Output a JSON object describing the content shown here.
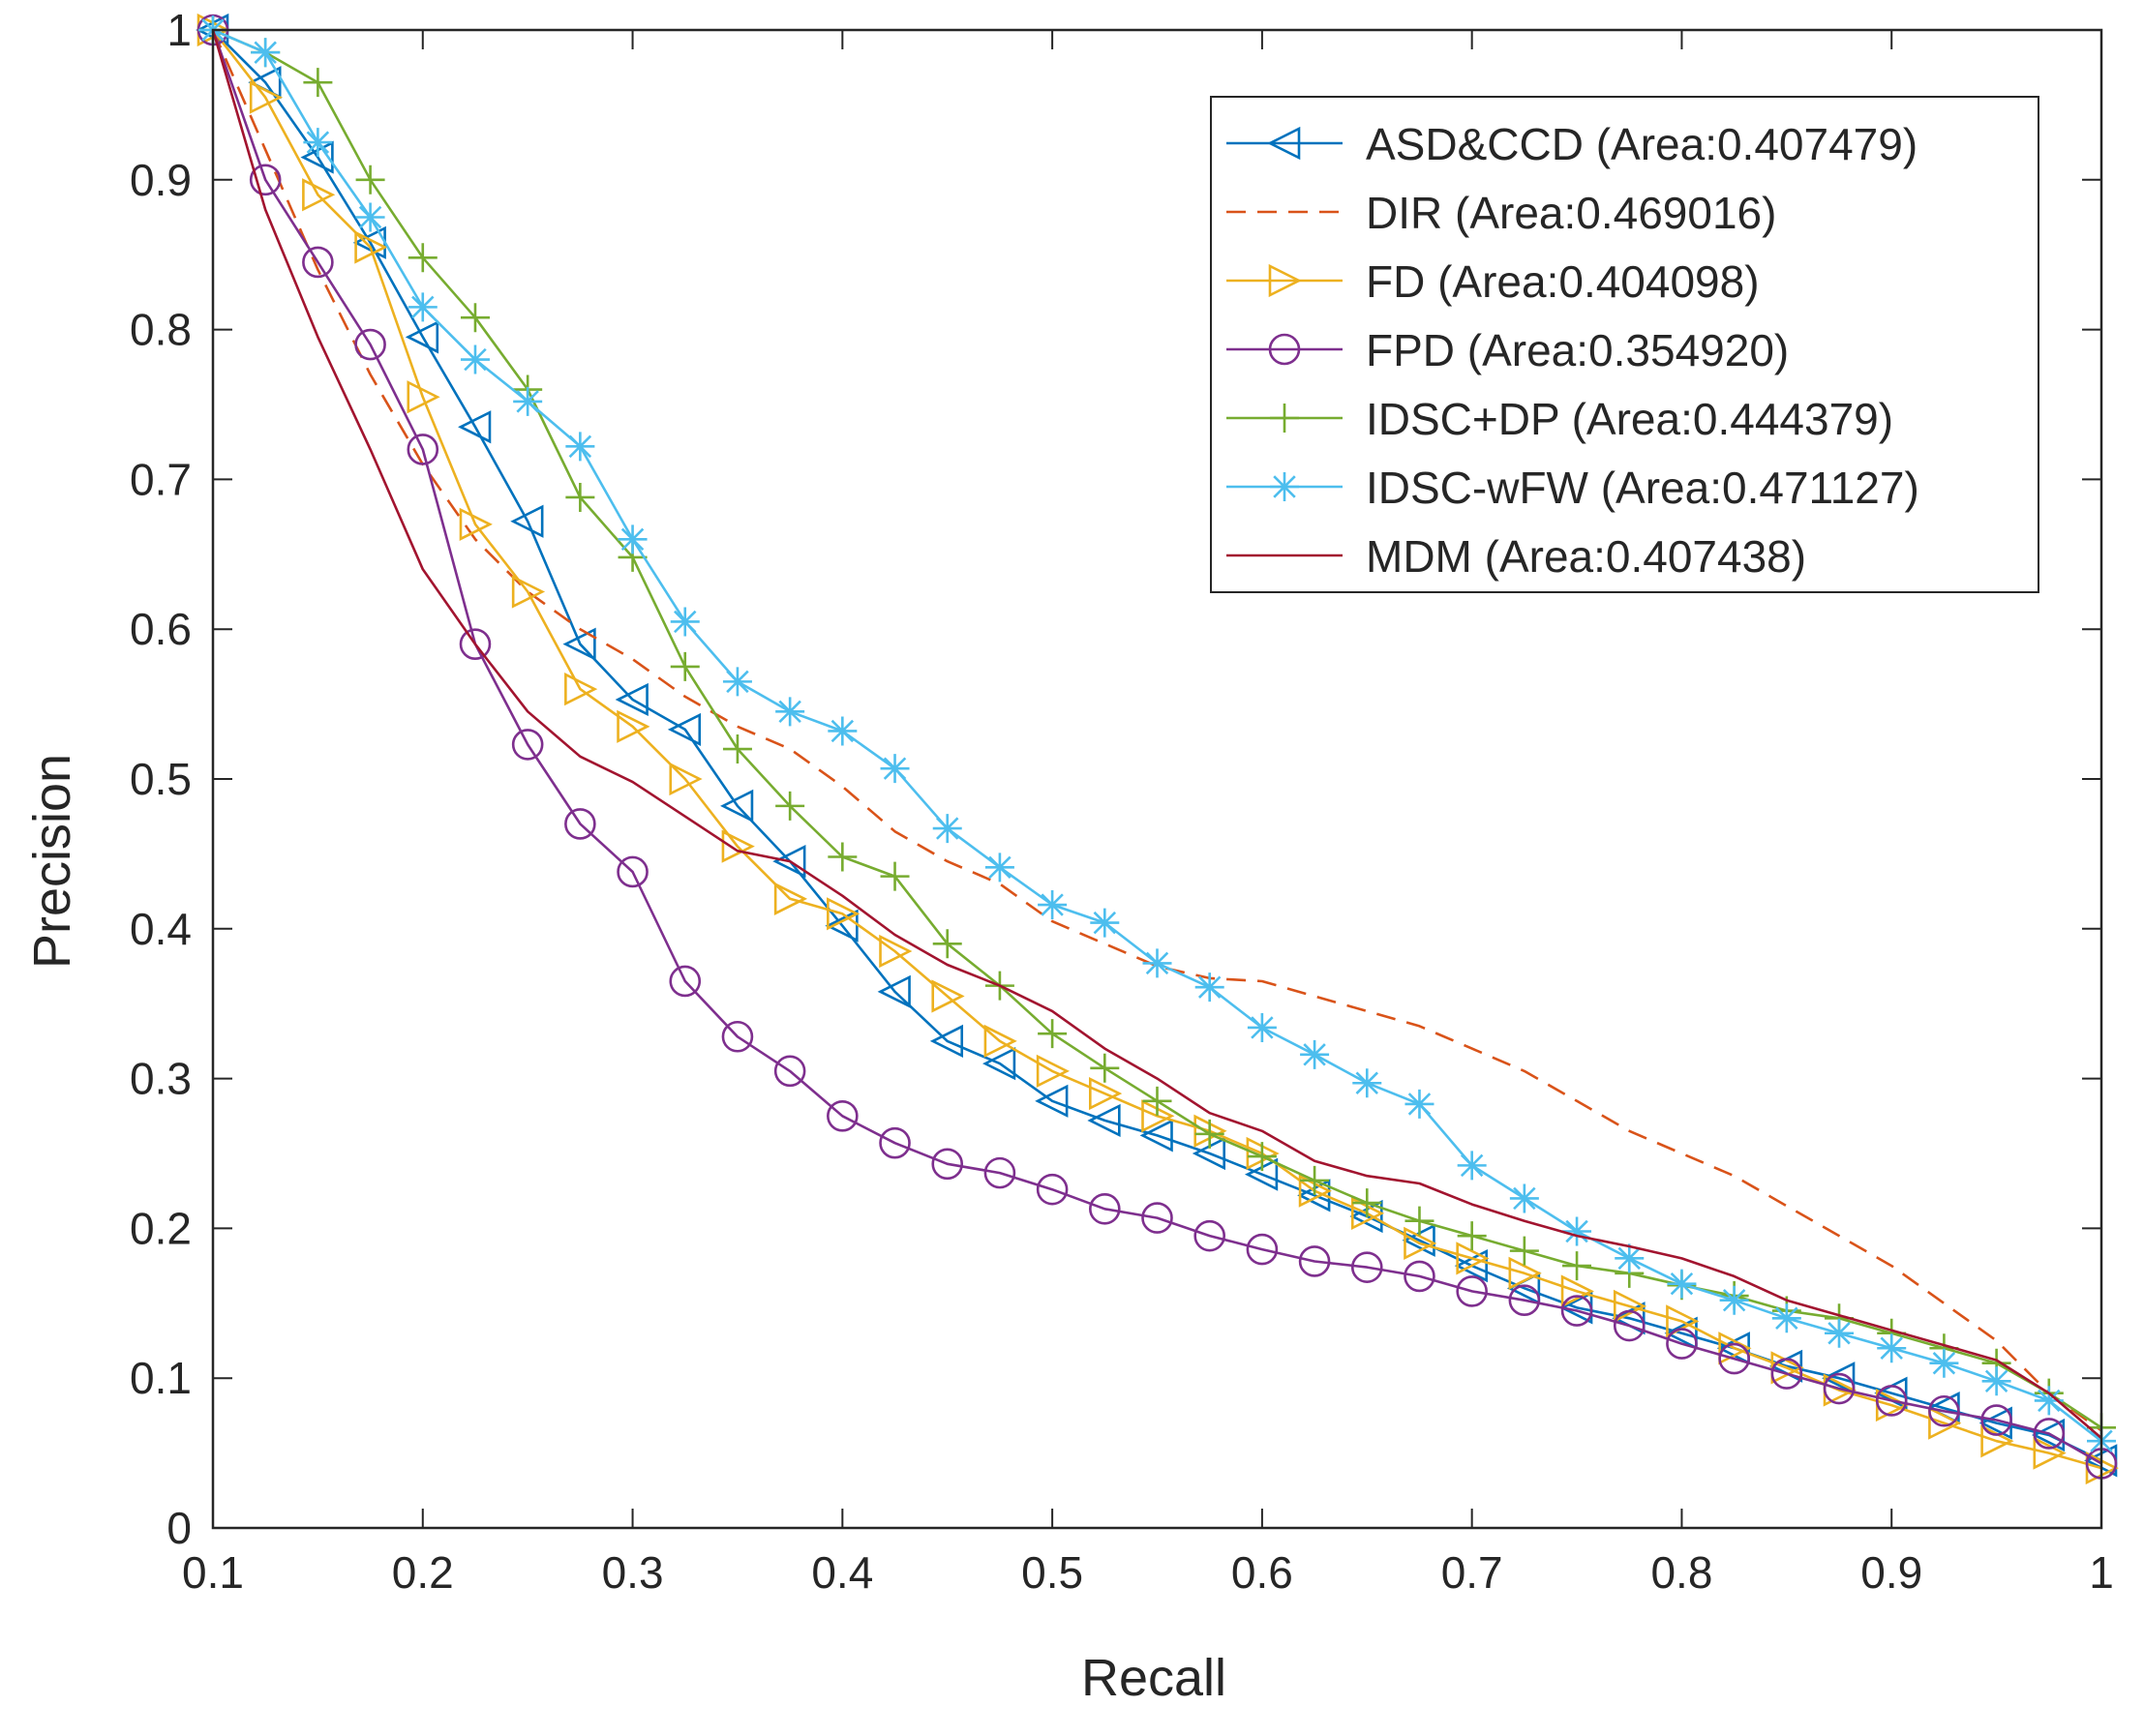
{
  "chart_data": {
    "type": "line",
    "title": "",
    "xlabel": "Recall",
    "ylabel": "Precision",
    "xlim": [
      0.1,
      1
    ],
    "ylim": [
      0,
      1
    ],
    "xticks": [
      0.1,
      0.2,
      0.3,
      0.4,
      0.5,
      0.6,
      0.7,
      0.8,
      0.9,
      1
    ],
    "xtick_labels": [
      "0.1",
      "0.2",
      "0.3",
      "0.4",
      "0.5",
      "0.6",
      "0.7",
      "0.8",
      "0.9",
      "1"
    ],
    "yticks": [
      0,
      0.1,
      0.2,
      0.3,
      0.4,
      0.5,
      0.6,
      0.7,
      0.8,
      0.9,
      1
    ],
    "ytick_labels": [
      "0",
      "0.1",
      "0.2",
      "0.3",
      "0.4",
      "0.5",
      "0.6",
      "0.7",
      "0.8",
      "0.9",
      "1"
    ],
    "grid": false,
    "legend_position": "top-right",
    "x": [
      0.1,
      0.125,
      0.15,
      0.175,
      0.2,
      0.225,
      0.25,
      0.275,
      0.3,
      0.325,
      0.35,
      0.375,
      0.4,
      0.425,
      0.45,
      0.475,
      0.5,
      0.525,
      0.55,
      0.575,
      0.6,
      0.625,
      0.65,
      0.675,
      0.7,
      0.725,
      0.75,
      0.775,
      0.8,
      0.825,
      0.85,
      0.875,
      0.9,
      0.925,
      0.95,
      0.975,
      1.0
    ],
    "series": [
      {
        "name": "ASD&CCD (Area:0.407479)",
        "color": "#0072BD",
        "dash": "solid",
        "marker": "triangle-left",
        "values": [
          1.0,
          0.965,
          0.915,
          0.858,
          0.795,
          0.735,
          0.672,
          0.59,
          0.553,
          0.533,
          0.482,
          0.445,
          0.402,
          0.358,
          0.325,
          0.31,
          0.285,
          0.272,
          0.262,
          0.25,
          0.236,
          0.222,
          0.208,
          0.192,
          0.175,
          0.16,
          0.147,
          0.14,
          0.13,
          0.12,
          0.108,
          0.1,
          0.09,
          0.08,
          0.07,
          0.062,
          0.045
        ]
      },
      {
        "name": "DIR (Area:0.469016)",
        "color": "#D95319",
        "dash": "dashed",
        "marker": "none",
        "values": [
          1.0,
          0.92,
          0.84,
          0.77,
          0.71,
          0.66,
          0.625,
          0.6,
          0.58,
          0.555,
          0.535,
          0.52,
          0.495,
          0.465,
          0.445,
          0.43,
          0.405,
          0.39,
          0.375,
          0.367,
          0.365,
          0.355,
          0.345,
          0.335,
          0.32,
          0.305,
          0.285,
          0.265,
          0.25,
          0.235,
          0.215,
          0.195,
          0.175,
          0.15,
          0.125,
          0.09,
          0.065
        ]
      },
      {
        "name": "FD (Area:0.404098)",
        "color": "#EDB120",
        "dash": "solid",
        "marker": "triangle-right",
        "values": [
          1.0,
          0.955,
          0.89,
          0.855,
          0.755,
          0.67,
          0.625,
          0.56,
          0.535,
          0.5,
          0.455,
          0.42,
          0.41,
          0.385,
          0.355,
          0.325,
          0.305,
          0.29,
          0.275,
          0.265,
          0.25,
          0.225,
          0.21,
          0.19,
          0.18,
          0.17,
          0.158,
          0.148,
          0.138,
          0.12,
          0.107,
          0.092,
          0.082,
          0.07,
          0.058,
          0.05,
          0.04
        ]
      },
      {
        "name": "FPD (Area:0.354920)",
        "color": "#7E2F8E",
        "dash": "solid",
        "marker": "circle",
        "values": [
          1.0,
          0.9,
          0.845,
          0.79,
          0.72,
          0.59,
          0.523,
          0.47,
          0.438,
          0.365,
          0.328,
          0.305,
          0.275,
          0.257,
          0.243,
          0.237,
          0.226,
          0.213,
          0.207,
          0.195,
          0.186,
          0.178,
          0.174,
          0.168,
          0.158,
          0.152,
          0.145,
          0.135,
          0.123,
          0.113,
          0.103,
          0.093,
          0.085,
          0.078,
          0.072,
          0.063,
          0.043
        ]
      },
      {
        "name": "IDSC+DP (Area:0.444379)",
        "color": "#77AC30",
        "dash": "solid",
        "marker": "plus",
        "values": [
          1.0,
          0.985,
          0.965,
          0.9,
          0.848,
          0.808,
          0.76,
          0.688,
          0.648,
          0.575,
          0.52,
          0.482,
          0.448,
          0.435,
          0.39,
          0.362,
          0.33,
          0.307,
          0.285,
          0.263,
          0.248,
          0.232,
          0.217,
          0.205,
          0.195,
          0.185,
          0.175,
          0.17,
          0.162,
          0.155,
          0.145,
          0.14,
          0.13,
          0.12,
          0.11,
          0.09,
          0.067
        ]
      },
      {
        "name": "IDSC-wFW (Area:0.471127)",
        "color": "#4DBEEE",
        "dash": "solid",
        "marker": "asterisk",
        "values": [
          1.0,
          0.985,
          0.925,
          0.875,
          0.815,
          0.78,
          0.752,
          0.722,
          0.66,
          0.605,
          0.565,
          0.545,
          0.532,
          0.507,
          0.467,
          0.441,
          0.416,
          0.404,
          0.377,
          0.361,
          0.334,
          0.316,
          0.297,
          0.283,
          0.242,
          0.22,
          0.198,
          0.18,
          0.163,
          0.152,
          0.14,
          0.13,
          0.12,
          0.11,
          0.098,
          0.085,
          0.058
        ]
      },
      {
        "name": "MDM (Area:0.407438)",
        "color": "#A2142F",
        "dash": "solid",
        "marker": "none",
        "values": [
          1.0,
          0.88,
          0.795,
          0.72,
          0.64,
          0.59,
          0.545,
          0.515,
          0.498,
          0.475,
          0.452,
          0.445,
          0.422,
          0.396,
          0.376,
          0.362,
          0.345,
          0.32,
          0.3,
          0.277,
          0.265,
          0.245,
          0.235,
          0.23,
          0.216,
          0.205,
          0.195,
          0.188,
          0.18,
          0.168,
          0.152,
          0.142,
          0.132,
          0.122,
          0.112,
          0.09,
          0.06
        ]
      }
    ]
  }
}
